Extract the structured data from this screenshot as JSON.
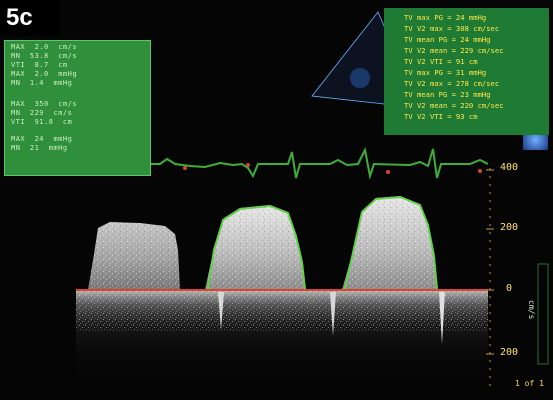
{
  "figure_label": "5c",
  "left_readout": {
    "rows": [
      {
        "label": "MAX",
        "value": "2.0",
        "unit": "cm/s"
      },
      {
        "label": "MN",
        "value": "53.8",
        "unit": "cm/s"
      },
      {
        "label": "VTI",
        "value": "8.7",
        "unit": "cm"
      },
      {
        "label": "MAX",
        "value": "2.0",
        "unit": "mmHg"
      },
      {
        "label": "MN",
        "value": "1.4",
        "unit": "mmHg"
      },
      {
        "label": "MAX",
        "value": "350",
        "unit": "cm/s"
      },
      {
        "label": "MN",
        "value": "229",
        "unit": "cm/s"
      },
      {
        "label": "VTI",
        "value": "91.8",
        "unit": "cm"
      },
      {
        "label": "MAX",
        "value": "24",
        "unit": "mmHg"
      },
      {
        "label": "MN",
        "value": "21",
        "unit": "mmHg"
      }
    ]
  },
  "right_readout": {
    "rows": [
      "TV max PG = 24 mmHg",
      "TV V2 max = 308 cm/sec",
      "TV mean PG = 24 mmHg",
      "TV V2 mean = 229 cm/sec",
      "TV V2 VTI = 91 cm",
      "TV max PG = 31 mmHg",
      "TV V2 max = 278 cm/sec",
      "TV mean PG = 23 mmHg",
      "TV V2 mean = 220 cm/sec",
      "TV V2 VTI = 93 cm"
    ]
  },
  "velocity_scale": {
    "labels": [
      "400",
      "200",
      "0",
      "200"
    ],
    "unit": "cm/s"
  },
  "page_indicator": "1 of 1",
  "colors": {
    "panel_green": "#2f8f3a",
    "trace_green": "#62d04a",
    "ecg_green": "#3fae3a",
    "baseline_red": "#e0432c",
    "text_yellow": "#ffe84a"
  }
}
